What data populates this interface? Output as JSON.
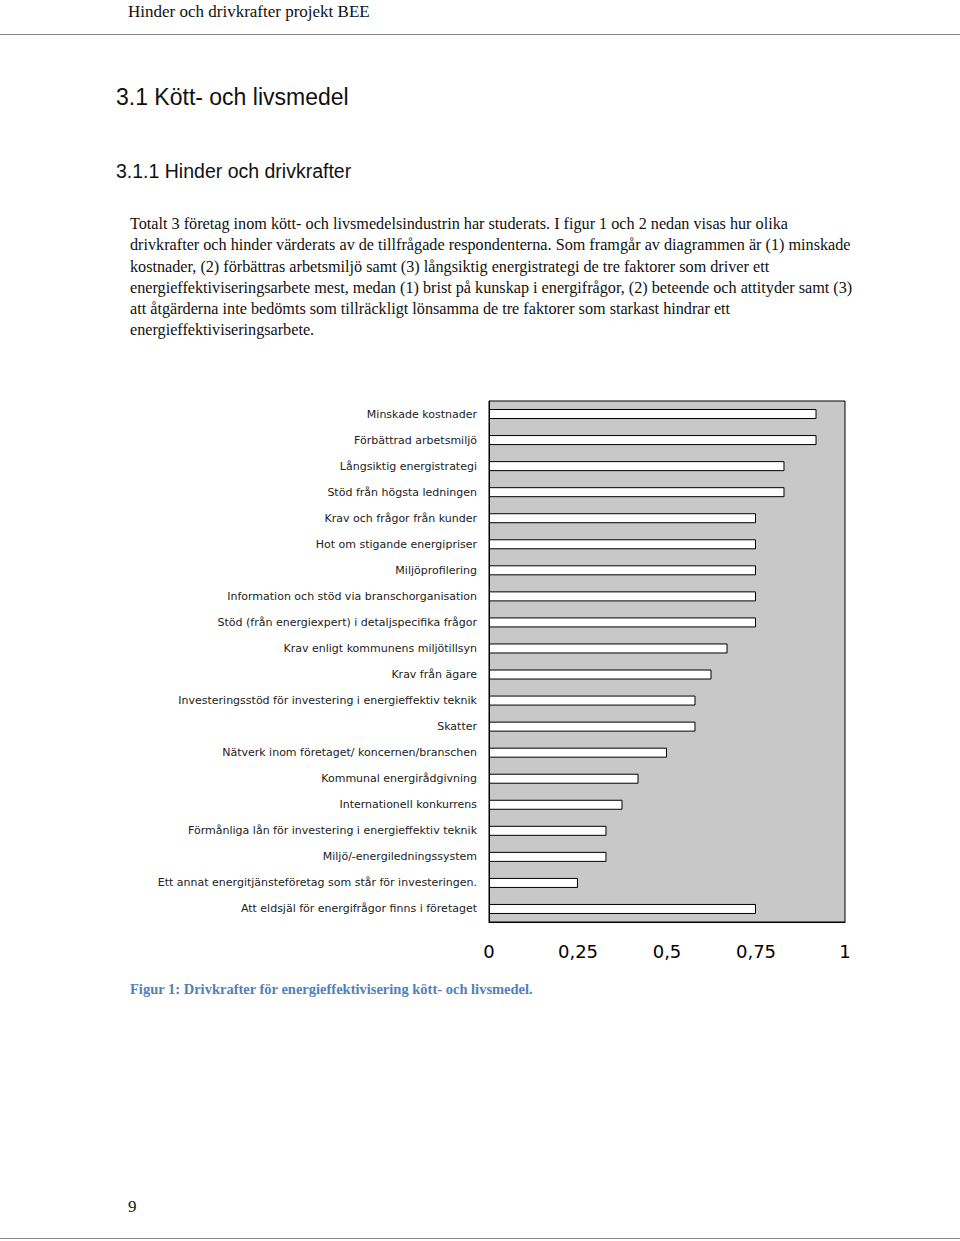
{
  "header": "Hinder och drivkrafter projekt BEE",
  "heading": "3.1 Kött- och livsmedel",
  "subheading": "3.1.1 Hinder och drivkrafter",
  "paragraph": "Totalt 3 företag inom kött- och livsmedelsindustrin har studerats. I figur 1 och 2 nedan visas hur olika drivkrafter och hinder värderats av de tillfrågade respondenterna. Som framgår av diagrammen är (1) minskade kostnader, (2) förbättras arbetsmiljö samt (3) långsiktig energistrategi de tre faktorer som driver ett energieffektiviseringsarbete mest, medan (1) brist på kunskap i energifrågor, (2) beteende och attityder samt (3) att åtgärderna inte bedömts som tillräckligt lönsamma de tre faktorer som starkast hindrar ett energieffektiviseringsarbete.",
  "chart_data": {
    "type": "bar",
    "orientation": "horizontal",
    "categories": [
      "Minskade kostnader",
      "Förbättrad arbetsmiljö",
      "Långsiktig energistrategi",
      "Stöd från högsta ledningen",
      "Krav och frågor från kunder",
      "Hot om stigande energipriser",
      "Miljöprofilering",
      "Information och stöd via branschorganisation",
      "Stöd (från energiexpert) i detaljspecifika frågor",
      "Krav enligt kommunens miljötillsyn",
      "Krav från ägare",
      "Investeringsstöd för investering i energieffektiv teknik",
      "Skatter",
      "Nätverk inom företaget/ koncernen/branschen",
      "Kommunal energirådgivning",
      "Internationell konkurrens",
      "Förmånliga lån för investering i energieffektiv teknik",
      "Miljö/-energiledningssystem",
      "Ett annat energitjänsteföretag som står för investeringen.",
      "Att eldsjäl för energifrågor finns i företaget"
    ],
    "values": [
      0.92,
      0.92,
      0.83,
      0.83,
      0.75,
      0.75,
      0.75,
      0.75,
      0.75,
      0.67,
      0.625,
      0.58,
      0.58,
      0.5,
      0.42,
      0.375,
      0.33,
      0.33,
      0.25,
      0.75
    ],
    "color": "#ffffff",
    "xlim": [
      0,
      1
    ],
    "xticks": [
      0,
      {
        "value": 0.25,
        "label": "0,25"
      },
      {
        "value": 0.5,
        "label": "0,5"
      },
      {
        "value": 0.75,
        "label": "0,75"
      },
      1
    ],
    "grid": false
  },
  "caption": "Figur 1: Drivkrafter för energieffektivisering kött- och livsmedel.",
  "page_number": 9
}
